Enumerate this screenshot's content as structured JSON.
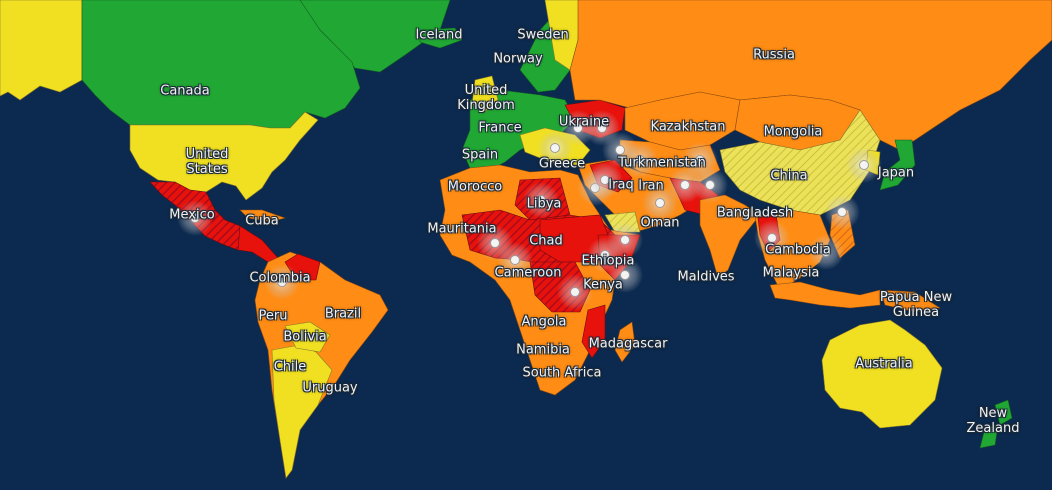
{
  "colors": {
    "ocean": "#0c2a4f",
    "low_risk": "#21a834",
    "medium_risk": "#f0e021",
    "high_risk": "#ff8c14",
    "extreme_risk": "#e8120c",
    "critical_hatch": "#b0101e",
    "hotspot": "#c8c8c8"
  },
  "countries": {
    "canada": "Canada",
    "united_states": "United\nStates",
    "mexico": "Mexico",
    "cuba": "Cuba",
    "colombia": "Colombia",
    "peru": "Peru",
    "brazil": "Brazil",
    "bolivia": "Bolivia",
    "chile": "Chile",
    "uruguay": "Uruguay",
    "iceland": "Iceland",
    "sweden": "Sweden",
    "norway": "Norway",
    "united_kingdom": "United\nKingdom",
    "france": "France",
    "spain": "Spain",
    "ukraine": "Ukraine",
    "greece": "Greece",
    "morocco": "Morocco",
    "libya": "Libya",
    "mauritania": "Mauritania",
    "chad": "Chad",
    "cameroon": "Cameroon",
    "ethiopia": "Ethiopia",
    "kenya": "Kenya",
    "angola": "Angola",
    "namibia": "Namibia",
    "south_africa": "South Africa",
    "madagascar": "Madagascar",
    "russia": "Russia",
    "kazakhstan": "Kazakhstan",
    "turkmenistan": "Turkmenistan",
    "iraq": "Iraq",
    "iran": "Iran",
    "oman": "Oman",
    "mongolia": "Mongolia",
    "china": "China",
    "japan": "Japan",
    "bangladesh": "Bangladesh",
    "maldives": "Maldives",
    "cambodia": "Cambodia",
    "malaysia": "Malaysia",
    "papua_new_guinea": "Papua New\nGuinea",
    "australia": "Australia",
    "new_zealand": "New\nZealand"
  }
}
